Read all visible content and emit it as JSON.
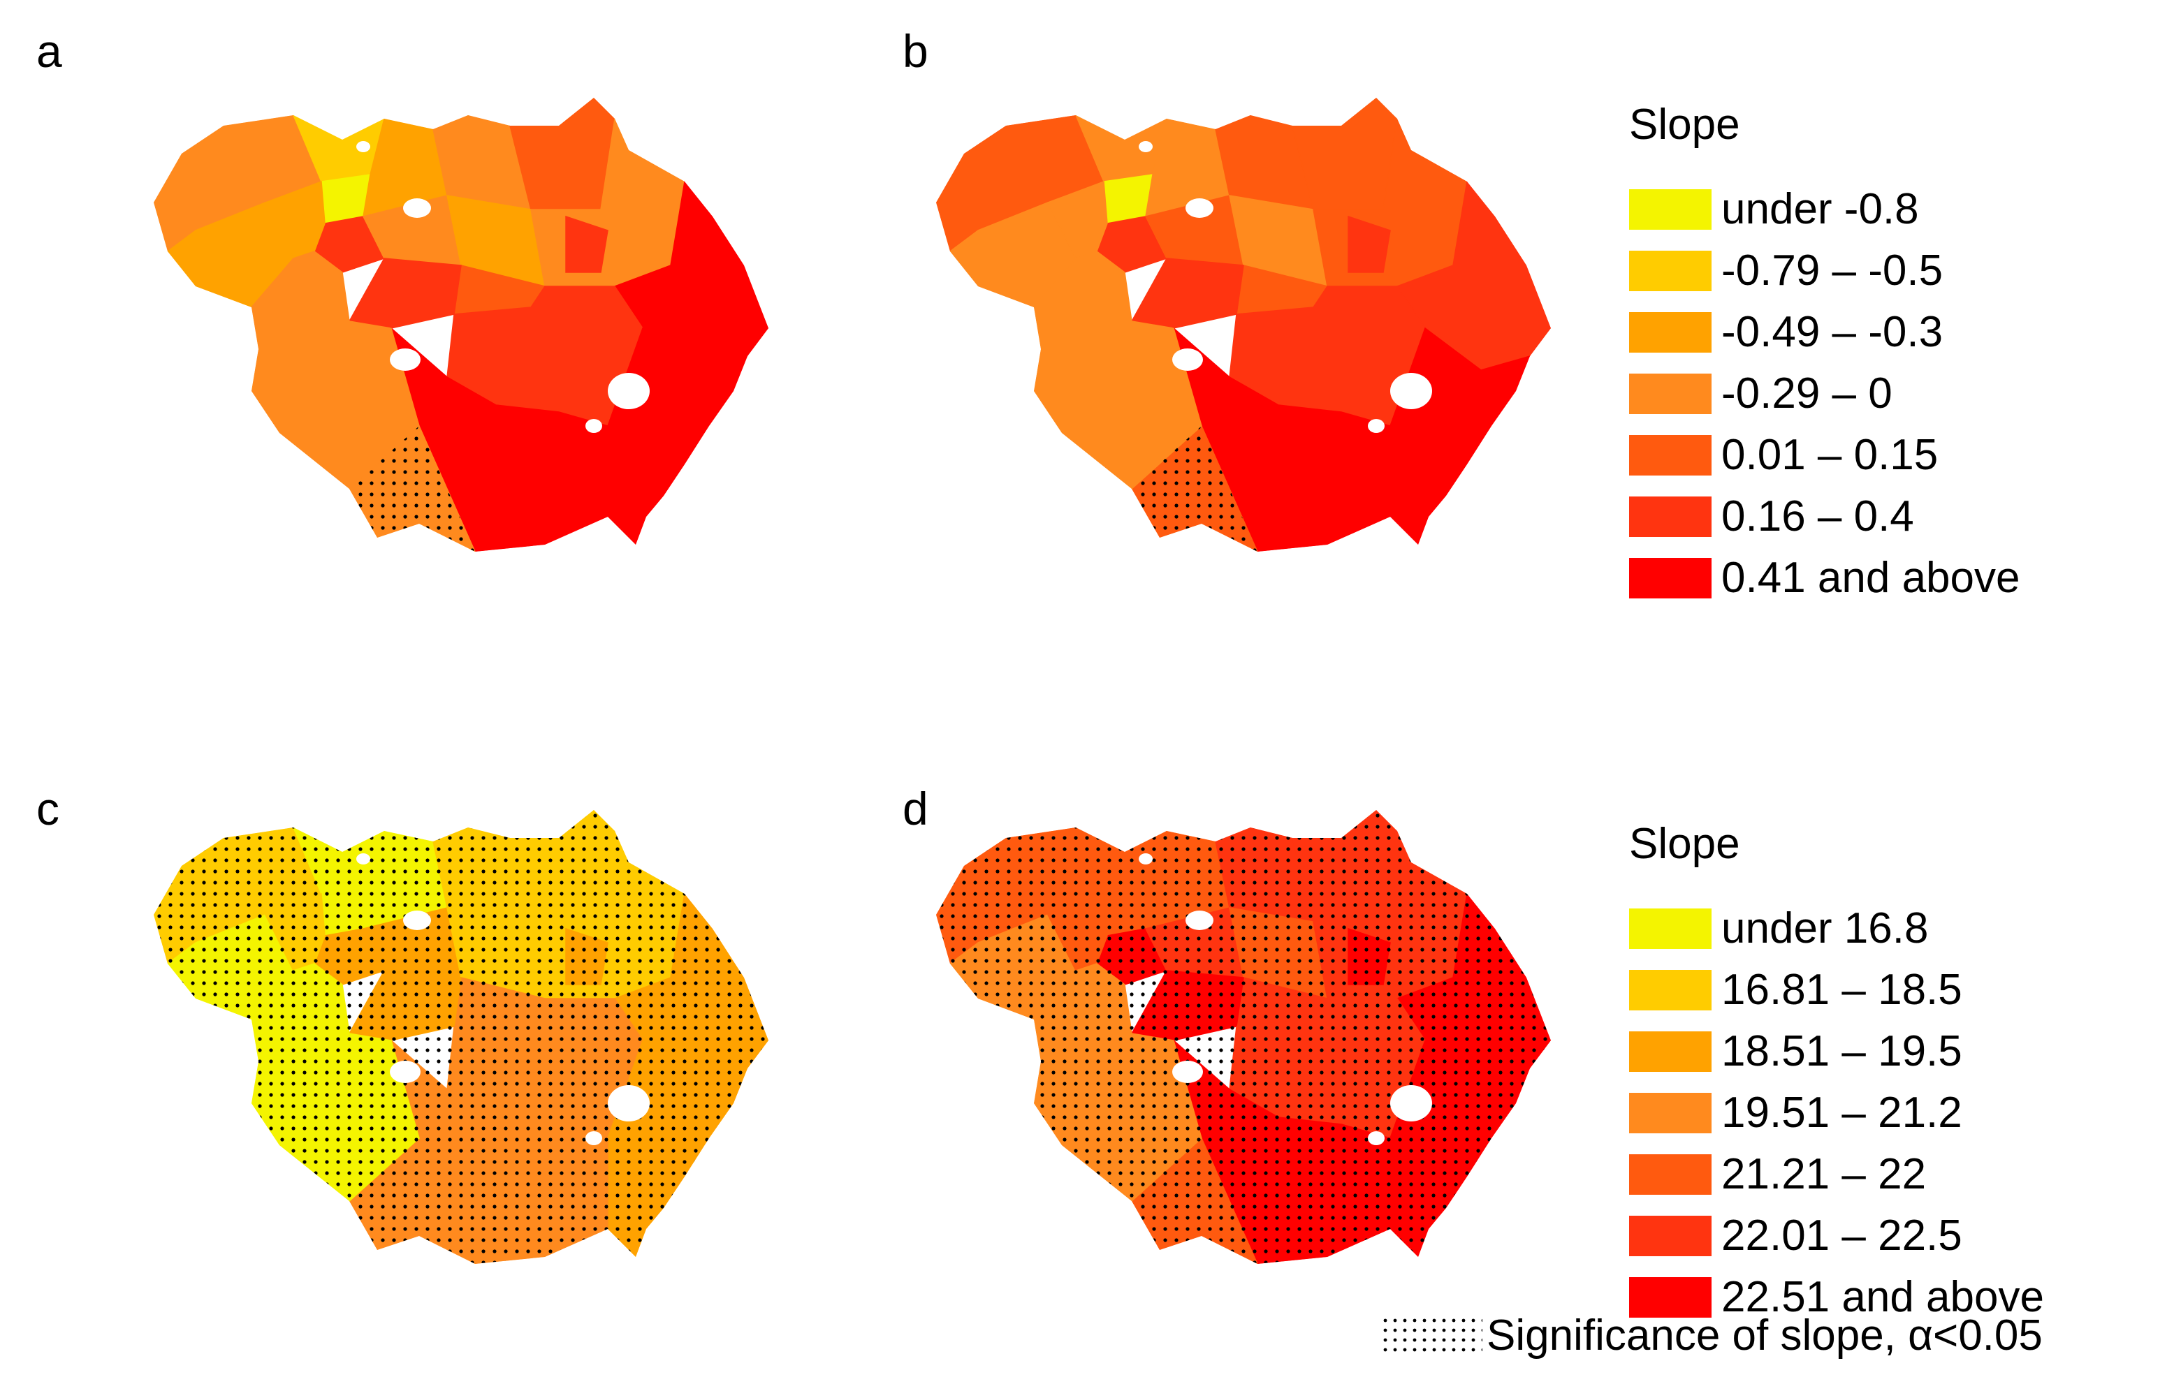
{
  "panels": {
    "a": "a",
    "b": "b",
    "c": "c",
    "d": "d"
  },
  "legend_top": {
    "title": "Slope",
    "classes": [
      {
        "label": "under -0.8",
        "color": "#f4f400"
      },
      {
        "label": "-0.79 – -0.5",
        "color": "#ffcc00"
      },
      {
        "label": "-0.49 – -0.3",
        "color": "#ffa200"
      },
      {
        "label": "-0.29 – 0",
        "color": "#ff8a1e"
      },
      {
        "label": "0.01 – 0.15",
        "color": "#ff5a0f"
      },
      {
        "label": "0.16 – 0.4",
        "color": "#ff3410"
      },
      {
        "label": "0.41 and above",
        "color": "#ff0000"
      }
    ]
  },
  "legend_bottom": {
    "title": "Slope",
    "classes": [
      {
        "label": "under 16.8",
        "color": "#f4f400"
      },
      {
        "label": "16.81 – 18.5",
        "color": "#ffcc00"
      },
      {
        "label": "18.51 – 19.5",
        "color": "#ffa200"
      },
      {
        "label": "19.51 – 21.2",
        "color": "#ff8a1e"
      },
      {
        "label": "21.21 – 22",
        "color": "#ff5a0f"
      },
      {
        "label": "22.01 – 22.5",
        "color": "#ff3410"
      },
      {
        "label": "22.51 and above",
        "color": "#ff0000"
      }
    ]
  },
  "significance": {
    "label": "Significance of slope, α<0.05"
  },
  "maps": {
    "a": {
      "classes": [
        3,
        1,
        0,
        2,
        3,
        4,
        2,
        5,
        2,
        3,
        2,
        3,
        5,
        4,
        5,
        6,
        5,
        6,
        6,
        3,
        3
      ],
      "stippled": [
        19
      ]
    },
    "b": {
      "classes": [
        4,
        3,
        0,
        3,
        4,
        4,
        3,
        5,
        3,
        4,
        3,
        4,
        5,
        4,
        5,
        5,
        5,
        6,
        6,
        4,
        3
      ],
      "stippled": [
        19
      ]
    },
    "c": {
      "classes": [
        1,
        0,
        0,
        0,
        1,
        1,
        0,
        2,
        1,
        2,
        1,
        1,
        2,
        3,
        2,
        2,
        3,
        2,
        3,
        3,
        0
      ],
      "stippled": "all"
    },
    "d": {
      "classes": [
        4,
        4,
        4,
        4,
        5,
        5,
        3,
        6,
        4,
        5,
        4,
        5,
        6,
        5,
        6,
        6,
        5,
        6,
        6,
        4,
        3
      ],
      "stippled": "all"
    }
  }
}
